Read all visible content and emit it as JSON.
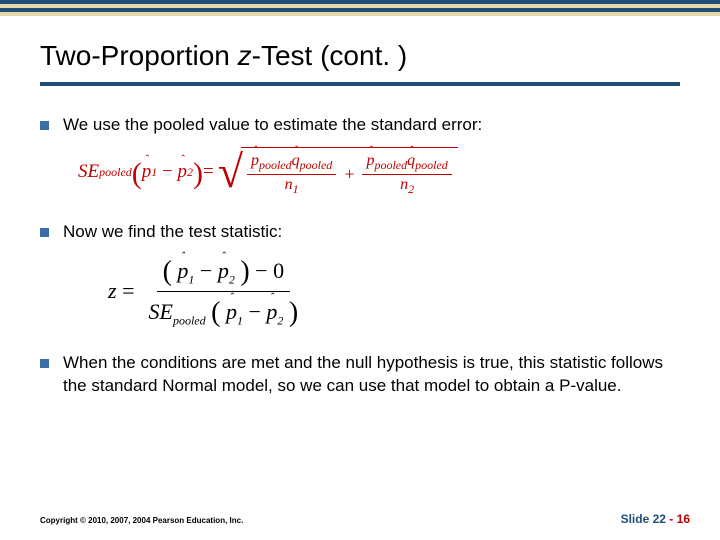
{
  "title_part1": "Two-Proportion ",
  "title_ital": "z",
  "title_part2": "-Test (cont. )",
  "bullets": {
    "b1": "We use the pooled value to estimate the standard error:",
    "b2": "Now we find the test statistic:",
    "b3": "When the conditions are met and the null hypothesis is true, this statistic follows the standard Normal model, so we can use that model to obtain a P-value."
  },
  "formula_se": {
    "lhs_func": "SE",
    "lhs_sub": "pooled",
    "p1": "p",
    "p1_hat": "ˆ",
    "p1_sub": "1",
    "p2": "p",
    "p2_hat": "ˆ",
    "p2_sub": "2",
    "q": "q",
    "q_hat": "ˆ",
    "pooled_sub": "pooled",
    "n": "n",
    "n1_sub": "1",
    "n2_sub": "2",
    "minus": "−",
    "equals": "=",
    "plus": "+",
    "color_accent": "#c00000"
  },
  "formula_z": {
    "z": "z",
    "equals": "=",
    "p1": "p",
    "p1_hat": "ˆ",
    "p1_sub": "1",
    "p2": "p",
    "p2_hat": "ˆ",
    "p2_sub": "2",
    "zero": "0",
    "minus": "−",
    "se": "SE",
    "se_sub": "pooled"
  },
  "footer": {
    "copyright": "Copyright © 2010, 2007, 2004 Pearson Education, Inc.",
    "slide_label": "Slide",
    "slide_chapter": "22",
    "slide_dash": " - ",
    "slide_page": "16"
  },
  "colors": {
    "title_underline": "#1f4e79",
    "bullet_square": "#3a6ea5",
    "formula_red": "#c00000",
    "slide_blue": "#1f4e79",
    "slide_red": "#c00000"
  }
}
